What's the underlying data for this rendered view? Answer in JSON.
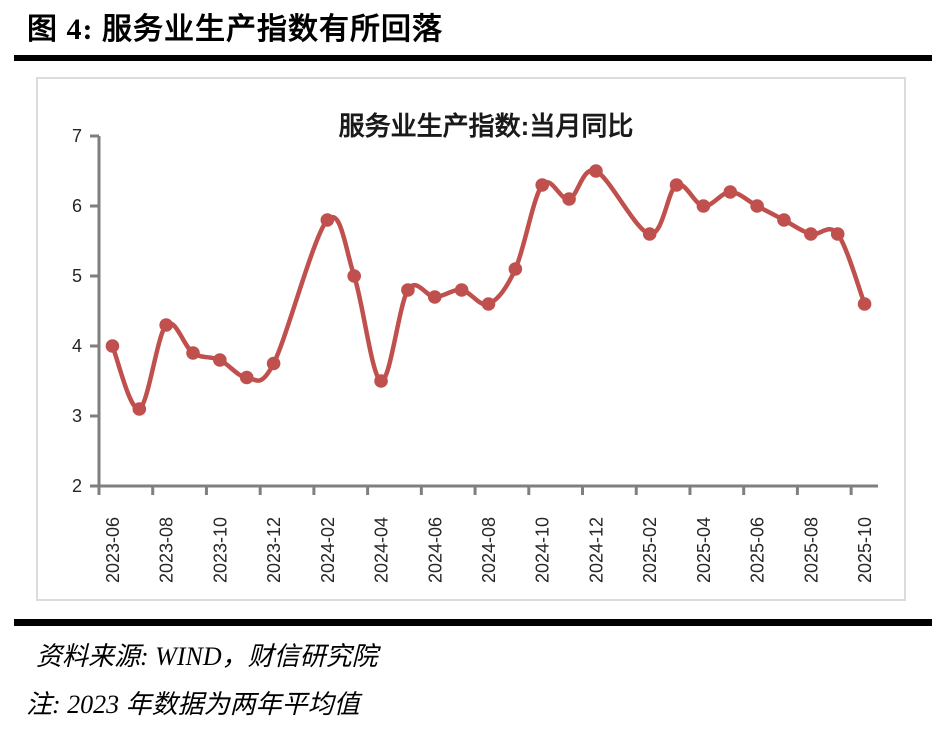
{
  "page_title": "图 4:  服务业生产指数有所回落",
  "chart_data": {
    "type": "line",
    "title": "服务业生产指数:当月同比",
    "series_name": "服务业生产指数:当月同比",
    "x": [
      "2023-06",
      "2023-07",
      "2023-08",
      "2023-09",
      "2023-10",
      "2023-11",
      "2023-12",
      "2024-01",
      "2024-02",
      "2024-03",
      "2024-04",
      "2024-05",
      "2024-06",
      "2024-07",
      "2024-08",
      "2024-09",
      "2024-10",
      "2024-11",
      "2024-12",
      "2025-01",
      "2025-02",
      "2025-03",
      "2025-04",
      "2025-05",
      "2025-06",
      "2025-07",
      "2025-08",
      "2025-09",
      "2025-10"
    ],
    "values": [
      4.0,
      3.1,
      4.3,
      3.9,
      3.8,
      3.55,
      3.75,
      null,
      5.8,
      5.0,
      3.5,
      4.8,
      4.7,
      4.8,
      4.6,
      5.1,
      6.3,
      6.1,
      6.5,
      null,
      5.6,
      6.3,
      6.0,
      6.2,
      6.0,
      5.8,
      5.6,
      5.6,
      4.6
    ],
    "x_tick_labels": [
      "2023-06",
      "2023-08",
      "2023-10",
      "2023-12",
      "2024-02",
      "2024-04",
      "2024-06",
      "2024-08",
      "2024-10",
      "2024-12",
      "2025-02",
      "2025-04",
      "2025-06",
      "2025-08",
      "2025-10"
    ],
    "y_ticks": [
      2,
      3,
      4,
      5,
      6,
      7
    ],
    "ylim": [
      2,
      7
    ],
    "grid": false,
    "legend_position": "none",
    "smoothed": true,
    "line_color": "#c0504d",
    "marker_color": "#c0504d",
    "axis_color": "#7f7f7f",
    "label_color": "#262626"
  },
  "footer": {
    "source": "资料来源: WIND，财信研究院",
    "note": "注: 2023 年数据为两年平均值"
  }
}
